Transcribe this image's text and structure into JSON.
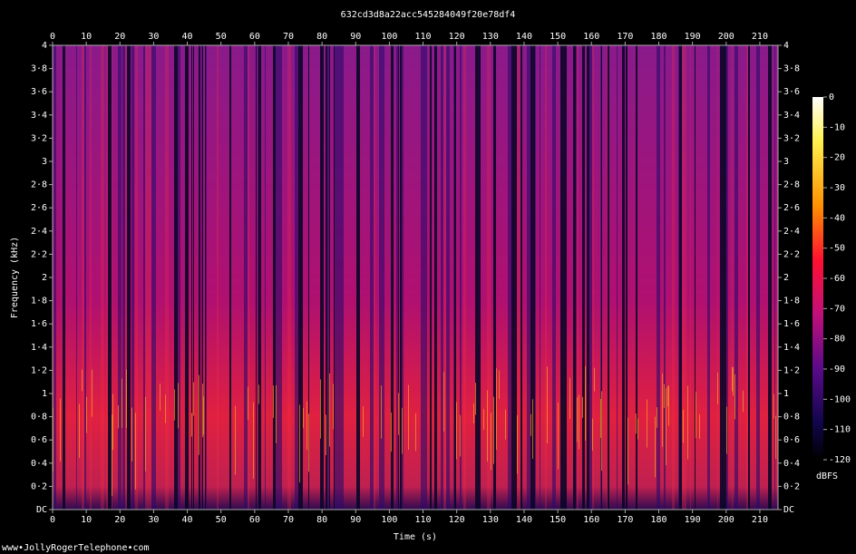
{
  "chart_data": {
    "type": "spectrogram",
    "title": "632cd3d8a22acc545284049f20e78df4",
    "x_label": "Time (s)",
    "y_label": "Frequency (kHz)",
    "xlim": [
      0,
      215.4
    ],
    "xticks": [
      0,
      10,
      20,
      30,
      40,
      50,
      60,
      70,
      80,
      90,
      100,
      110,
      120,
      130,
      140,
      150,
      160,
      170,
      180,
      190,
      200,
      210
    ],
    "ylim": [
      0,
      4
    ],
    "yticks": [
      {
        "value": 0,
        "label": "DC"
      },
      {
        "value": 0.2,
        "label": "0·2"
      },
      {
        "value": 0.4,
        "label": "0·4"
      },
      {
        "value": 0.6,
        "label": "0·6"
      },
      {
        "value": 0.8,
        "label": "0·8"
      },
      1,
      {
        "value": 1.2,
        "label": "1·2"
      },
      {
        "value": 1.4,
        "label": "1·4"
      },
      {
        "value": 1.6,
        "label": "1·6"
      },
      {
        "value": 1.8,
        "label": "1·8"
      },
      2,
      {
        "value": 2.2,
        "label": "2·2"
      },
      {
        "value": 2.4,
        "label": "2·4"
      },
      {
        "value": 2.6,
        "label": "2·6"
      },
      {
        "value": 2.8,
        "label": "2·8"
      },
      3,
      {
        "value": 3.2,
        "label": "3·2"
      },
      {
        "value": 3.4,
        "label": "3·4"
      },
      {
        "value": 3.6,
        "label": "3·6"
      },
      {
        "value": 3.8,
        "label": "3·8"
      },
      4
    ],
    "colorbar": {
      "label": "dBFS",
      "lim": [
        -120,
        0
      ],
      "ticks": [
        0,
        -10,
        -20,
        -30,
        -40,
        -50,
        -60,
        -70,
        -80,
        -90,
        -100,
        -110,
        -120
      ]
    },
    "footer": "www•JollyRogerTelephone•com"
  }
}
